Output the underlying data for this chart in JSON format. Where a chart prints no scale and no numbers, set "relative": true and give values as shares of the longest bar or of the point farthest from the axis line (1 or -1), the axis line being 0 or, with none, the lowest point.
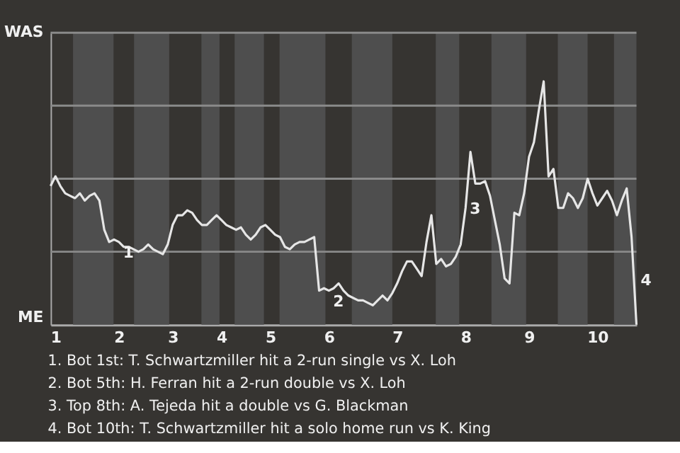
{
  "chart_data": {
    "type": "line",
    "relative": true,
    "categories": [
      null,
      "1",
      null,
      null,
      null,
      null,
      null,
      null,
      null,
      null,
      null,
      null,
      null,
      null,
      "2",
      null,
      null,
      null,
      null,
      null,
      null,
      null,
      null,
      null,
      null,
      "3",
      null,
      null,
      null,
      null,
      null,
      null,
      null,
      null,
      null,
      "4",
      null,
      null,
      null,
      null,
      null,
      null,
      null,
      null,
      null,
      "5",
      null,
      null,
      null,
      null,
      null,
      null,
      null,
      null,
      null,
      null,
      null,
      "6",
      null,
      null,
      null,
      null,
      null,
      null,
      null,
      null,
      null,
      null,
      null,
      null,
      null,
      "7",
      null,
      null,
      null,
      null,
      null,
      null,
      null,
      null,
      null,
      null,
      null,
      null,
      null,
      "8",
      null,
      null,
      null,
      null,
      null,
      null,
      null,
      null,
      null,
      null,
      null,
      null,
      "9",
      null,
      null,
      null,
      null,
      null,
      null,
      null,
      null,
      null,
      null,
      null,
      null,
      null,
      "10",
      null,
      null,
      null,
      null,
      null,
      null,
      null,
      null
    ],
    "series": [
      {
        "color": "#e6e6e6",
        "values": [
          0.57,
          0.61,
          0.57,
          0.54,
          0.53,
          0.52,
          0.54,
          0.51,
          0.53,
          0.54,
          0.51,
          0.39,
          0.34,
          0.35,
          0.34,
          0.32,
          0.32,
          0.31,
          0.3,
          0.31,
          0.33,
          0.31,
          0.3,
          0.29,
          0.33,
          0.41,
          0.45,
          0.45,
          0.47,
          0.46,
          0.43,
          0.41,
          0.41,
          0.43,
          0.45,
          0.43,
          0.41,
          0.4,
          0.39,
          0.4,
          0.37,
          0.35,
          0.37,
          0.4,
          0.41,
          0.39,
          0.37,
          0.36,
          0.32,
          0.31,
          0.33,
          0.34,
          0.34,
          0.35,
          0.36,
          0.14,
          0.15,
          0.14,
          0.15,
          0.17,
          0.14,
          0.12,
          0.11,
          0.1,
          0.1,
          0.09,
          0.08,
          0.1,
          0.12,
          0.1,
          0.13,
          0.17,
          0.22,
          0.26,
          0.26,
          0.23,
          0.2,
          0.34,
          0.45,
          0.25,
          0.27,
          0.24,
          0.25,
          0.28,
          0.33,
          0.48,
          0.71,
          0.58,
          0.58,
          0.59,
          0.53,
          0.43,
          0.33,
          0.19,
          0.17,
          0.46,
          0.45,
          0.54,
          0.69,
          0.75,
          0.88,
          1,
          0.61,
          0.64,
          0.48,
          0.48,
          0.54,
          0.52,
          0.48,
          0.52,
          0.6,
          0.54,
          0.49,
          0.52,
          0.55,
          0.51,
          0.45,
          0.51,
          0.56,
          0.36,
          0
        ]
      }
    ],
    "marker": "none",
    "line_style": "solid",
    "ref_lines": [
      {
        "axis": "y",
        "value": 0.3,
        "label": null,
        "color": "#8a8a8a"
      },
      {
        "axis": "y",
        "value": 0.6,
        "label": null,
        "color": "#8a8a8a"
      },
      {
        "axis": "y",
        "value": 0.9,
        "label": null,
        "color": "#8a8a8a"
      },
      {
        "axis": "y",
        "value": 1.2,
        "label": "WAS",
        "color": "#8a8a8a"
      }
    ],
    "annotations": [
      "ME",
      {
        "text": "1",
        "x": "2",
        "y": 0.35
      },
      {
        "text": "2",
        "x": "6",
        "y": 0.15
      },
      {
        "text": "3",
        "x": "8",
        "y": 0.53
      },
      "4",
      "1. Bot 1st: T. Schwartzmiller hit a 2-run single vs X. Loh",
      "2. Bot 5th: H. Ferran hit a 2-run double vs X. Loh",
      "3. Top 8th: A. Tejeda hit a double vs G. Blackman",
      "4. Bot 10th: T. Schwartzmiller hit a solo home run vs K. King"
    ]
  }
}
